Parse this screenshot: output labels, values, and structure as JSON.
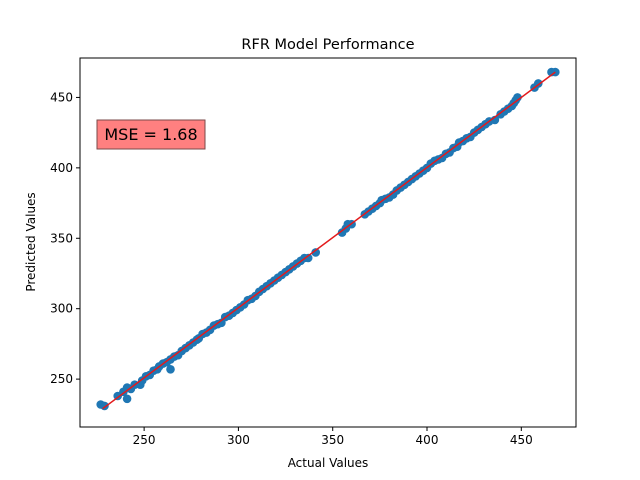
{
  "chart_data": {
    "type": "scatter",
    "title": "RFR Model Performance",
    "xlabel": "Actual Values",
    "ylabel": "Predicted Values",
    "xlim": [
      216,
      479
    ],
    "ylim": [
      216,
      478
    ],
    "xticks": [
      250,
      300,
      350,
      400,
      450
    ],
    "yticks": [
      250,
      300,
      350,
      400,
      450
    ],
    "grid": false,
    "annotation": {
      "text": "MSE = 1.68",
      "background": "#ff8080"
    },
    "point_color": "#1f77b4",
    "line_color": "#e31a1c",
    "fit_line": [
      [
        228,
        229
      ],
      [
        468,
        468
      ]
    ],
    "points": [
      [
        227,
        232
      ],
      [
        229,
        231
      ],
      [
        236,
        238
      ],
      [
        239,
        241
      ],
      [
        241,
        236
      ],
      [
        241,
        244
      ],
      [
        243,
        243
      ],
      [
        245,
        246
      ],
      [
        248,
        246
      ],
      [
        249,
        249
      ],
      [
        251,
        252
      ],
      [
        253,
        253
      ],
      [
        255,
        256
      ],
      [
        257,
        257
      ],
      [
        258,
        259
      ],
      [
        260,
        261
      ],
      [
        262,
        262
      ],
      [
        264,
        257
      ],
      [
        264,
        264
      ],
      [
        266,
        266
      ],
      [
        268,
        267
      ],
      [
        270,
        270
      ],
      [
        272,
        272
      ],
      [
        274,
        274
      ],
      [
        276,
        276
      ],
      [
        278,
        278
      ],
      [
        279,
        279
      ],
      [
        281,
        282
      ],
      [
        283,
        283
      ],
      [
        285,
        285
      ],
      [
        287,
        288
      ],
      [
        289,
        289
      ],
      [
        291,
        290
      ],
      [
        293,
        294
      ],
      [
        295,
        295
      ],
      [
        297,
        297
      ],
      [
        299,
        299
      ],
      [
        301,
        301
      ],
      [
        303,
        303
      ],
      [
        305,
        306
      ],
      [
        307,
        307
      ],
      [
        309,
        309
      ],
      [
        311,
        312
      ],
      [
        313,
        314
      ],
      [
        315,
        316
      ],
      [
        317,
        318
      ],
      [
        319,
        320
      ],
      [
        321,
        322
      ],
      [
        323,
        324
      ],
      [
        325,
        326
      ],
      [
        327,
        328
      ],
      [
        329,
        330
      ],
      [
        331,
        332
      ],
      [
        333,
        334
      ],
      [
        335,
        336
      ],
      [
        337,
        336
      ],
      [
        341,
        340
      ],
      [
        355,
        354
      ],
      [
        357,
        357
      ],
      [
        358,
        360
      ],
      [
        360,
        360
      ],
      [
        367,
        367
      ],
      [
        369,
        369
      ],
      [
        371,
        371
      ],
      [
        373,
        373
      ],
      [
        375,
        375
      ],
      [
        376,
        377
      ],
      [
        378,
        378
      ],
      [
        380,
        379
      ],
      [
        382,
        381
      ],
      [
        384,
        384
      ],
      [
        386,
        386
      ],
      [
        388,
        388
      ],
      [
        390,
        390
      ],
      [
        392,
        392
      ],
      [
        394,
        394
      ],
      [
        396,
        396
      ],
      [
        398,
        398
      ],
      [
        400,
        400
      ],
      [
        402,
        403
      ],
      [
        404,
        405
      ],
      [
        406,
        406
      ],
      [
        408,
        407
      ],
      [
        410,
        410
      ],
      [
        412,
        411
      ],
      [
        414,
        414
      ],
      [
        416,
        415
      ],
      [
        417,
        418
      ],
      [
        419,
        419
      ],
      [
        421,
        421
      ],
      [
        423,
        422
      ],
      [
        425,
        425
      ],
      [
        427,
        427
      ],
      [
        429,
        429
      ],
      [
        431,
        431
      ],
      [
        433,
        433
      ],
      [
        436,
        434
      ],
      [
        439,
        438
      ],
      [
        441,
        440
      ],
      [
        443,
        442
      ],
      [
        445,
        444
      ],
      [
        446,
        446
      ],
      [
        447,
        448
      ],
      [
        448,
        450
      ],
      [
        457,
        457
      ],
      [
        459,
        460
      ],
      [
        466,
        468
      ],
      [
        468,
        468
      ]
    ]
  }
}
